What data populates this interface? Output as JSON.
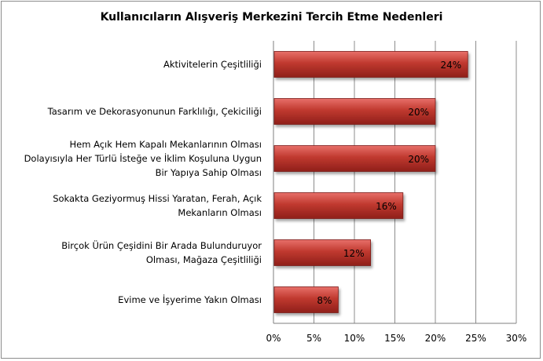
{
  "chart_data": {
    "type": "bar",
    "orientation": "horizontal",
    "title": "Kullanıcıların Alışveriş Merkezini  Tercih Etme Nedenleri",
    "categories": [
      [
        "Aktivitelerin Çeşitliliği"
      ],
      [
        "Tasarım ve Dekorasyonunun Farklılığı, Çekiciliği"
      ],
      [
        "Hem Açık Hem Kapalı Mekanlarının Olması",
        "Dolayısıyla Her Türlü İsteğe ve İklim Koşuluna Uygun",
        "Bir Yapıya Sahip Olması"
      ],
      [
        "Sokakta Geziyormuş Hissi Yaratan,  Ferah, Açık",
        "Mekanların Olması"
      ],
      [
        "Birçok Ürün Çeşidini Bir Arada Bulunduruyor",
        "Olması, Mağaza Çeşitliliği"
      ],
      [
        "Evime ve İşyerime Yakın Olması"
      ]
    ],
    "values": [
      24,
      20,
      20,
      16,
      12,
      8
    ],
    "data_labels": [
      "24%",
      "20%",
      "20%",
      "16%",
      "12%",
      "8%"
    ],
    "xlim": [
      0,
      30
    ],
    "xticks": [
      0,
      5,
      10,
      15,
      20,
      25,
      30
    ],
    "xtick_labels": [
      "0%",
      "5%",
      "10%",
      "15%",
      "20%",
      "25%",
      "30%"
    ],
    "grid": "vertical",
    "legend": "none",
    "colors": {
      "bar": "#c0392f",
      "bar_light": "#e8706a",
      "bar_dark": "#8f1f1a",
      "grid": "#8c8c8c"
    }
  }
}
